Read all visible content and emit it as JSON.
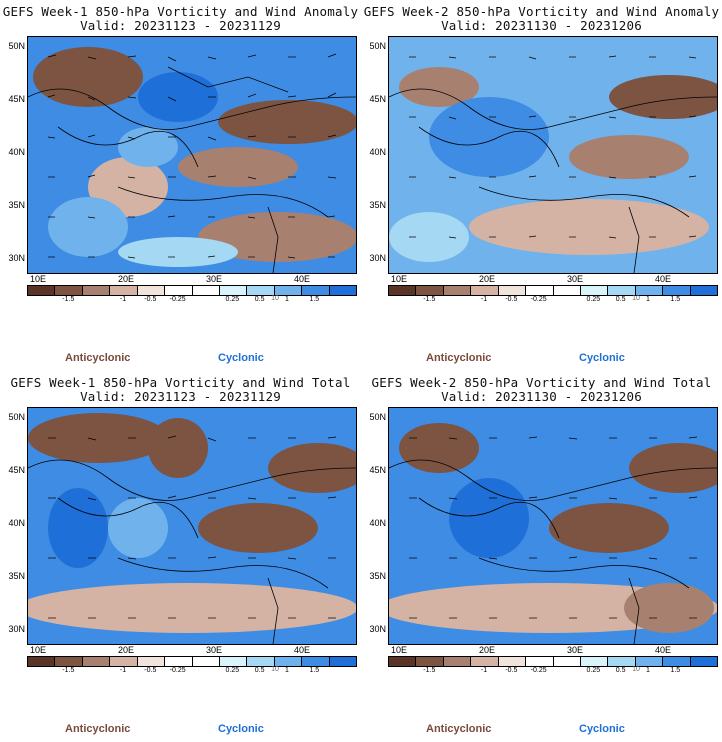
{
  "colors": {
    "anticyclonic": "#7b4a3a",
    "cyclonic": "#1e6fd6",
    "scale": [
      "#5a3426",
      "#7d5342",
      "#a88070",
      "#d4b3a5",
      "#f1e4dc",
      "#ffffff",
      "#ffffff",
      "#d9f3fb",
      "#a5d8f2",
      "#6fb2ec",
      "#3e8ce3",
      "#1f6fd8"
    ]
  },
  "colorbar": {
    "ticks": [
      "-1.5",
      "-1",
      "-0.5",
      "-0.25",
      "0.25",
      "0.5",
      "1",
      "1.5"
    ],
    "wind_scale_label": "10"
  },
  "legend": {
    "anticyclonic": "Anticyclonic",
    "cyclonic": "Cyclonic"
  },
  "axes": {
    "lat_labels": [
      "50N",
      "45N",
      "40N",
      "35N",
      "30N"
    ],
    "lon_labels": [
      "10E",
      "20E",
      "30E",
      "40E"
    ]
  },
  "panels": [
    {
      "title": "GEFS Week-1 850-hPa Vorticity and Wind Anomaly",
      "valid": "Valid: 20231123 - 20231129"
    },
    {
      "title": "GEFS Week-2 850-hPa Vorticity and Wind Anomaly",
      "valid": "Valid: 20231130 - 20231206"
    },
    {
      "title": "GEFS Week-1 850-hPa Vorticity and Wind Total",
      "valid": "Valid: 20231123 - 20231129"
    },
    {
      "title": "GEFS Week-2 850-hPa Vorticity and Wind Total",
      "valid": "Valid: 20231130 - 20231206"
    }
  ]
}
